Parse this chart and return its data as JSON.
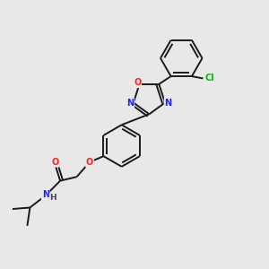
{
  "bg_color": "#e8e8e8",
  "bond_color": "#1a1a1a",
  "atom_colors": {
    "N": "#2020ff",
    "O": "#ff2020",
    "Cl": "#00bb00",
    "C": "#1a1a1a",
    "H": "#444444"
  },
  "lw": 1.4,
  "fs": 7.0,
  "fig_w": 3.0,
  "fig_h": 3.0,
  "dpi": 100
}
